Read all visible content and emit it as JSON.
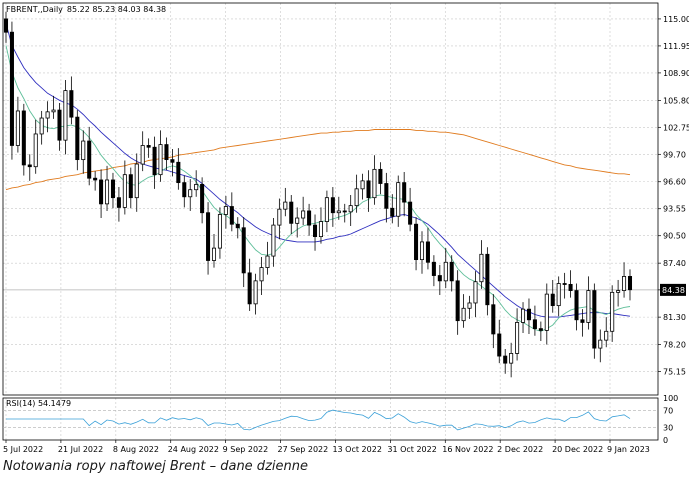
{
  "header": {
    "symbol": "FBRENT,,Daily",
    "ohlc": "85.22 85.23 84.03 84.38"
  },
  "caption": "Notowania ropy naftowej Brent – dane dzienne",
  "rsi_label": "RSI(14) 54.1479",
  "current_price": "84.38",
  "colors": {
    "candle": "#000000",
    "ma_short": "#5fbf9a",
    "ma_mid": "#2f2fbf",
    "ma_long": "#e07b1f",
    "rsi": "#3aa0d8",
    "grid": "#c8c8c8"
  },
  "chart_data": {
    "type": "candlestick",
    "price_ticks": [
      115.0,
      111.95,
      108.9,
      105.8,
      102.75,
      99.7,
      96.6,
      93.55,
      90.5,
      87.4,
      84.38,
      81.3,
      78.2,
      75.15
    ],
    "price_tick_labels": [
      "115.00",
      "111.95",
      "108.90",
      "105.80",
      "102.75",
      "99.70",
      "96.60",
      "93.55",
      "90.50",
      "87.40",
      "84.38",
      "81.30",
      "78.20",
      "75.15"
    ],
    "ylim": [
      72.5,
      116.8
    ],
    "x_labels": [
      "5 Jul 2022",
      "21 Jul 2022",
      "8 Aug 2022",
      "24 Aug 2022",
      "9 Sep 2022",
      "27 Sep 2022",
      "13 Oct 2022",
      "31 Oct 2022",
      "16 Nov 2022",
      "2 Dec 2022",
      "20 Dec 2022",
      "9 Jan 2023"
    ],
    "closes": [
      113.5,
      100.7,
      104.6,
      98.5,
      98.3,
      102.0,
      103.8,
      104.5,
      104.7,
      101.3,
      106.9,
      103.9,
      99.1,
      101.2,
      97.0,
      96.8,
      94.1,
      96.8,
      94.8,
      93.7,
      97.4,
      94.8,
      98.6,
      100.7,
      100.5,
      97.4,
      100.8,
      99.1,
      98.8,
      96.5,
      94.9,
      95.7,
      96.3,
      93.1,
      87.7,
      89.1,
      92.9,
      93.8,
      91.8,
      91.4,
      86.3,
      82.8,
      85.4,
      86.9,
      88.2,
      91.7,
      93.5,
      94.3,
      91.9,
      92.5,
      93.3,
      91.7,
      90.4,
      92.1,
      94.8,
      93.1,
      93.3,
      93.2,
      93.9,
      95.8,
      96.7,
      94.8,
      98.0,
      96.4,
      93.6,
      92.7,
      96.5,
      94.3,
      91.8,
      87.8,
      89.8,
      87.5,
      86.0,
      85.4,
      87.5,
      85.4,
      80.9,
      82.3,
      82.9,
      85.3,
      88.4,
      82.7,
      79.4,
      76.9,
      76.1,
      77.2,
      80.7,
      82.2,
      81.0,
      80.0,
      79.8,
      83.9,
      82.6,
      85.1,
      85.0,
      84.3,
      81.0,
      80.7,
      84.3,
      77.8,
      78.7,
      79.7,
      84.1,
      84.3,
      85.9,
      84.4
    ],
    "ma_short": [
      112.0,
      109.0,
      107.2,
      106.0,
      104.6,
      103.6,
      103.0,
      102.7,
      102.6,
      102.8,
      102.9,
      103.0,
      102.8,
      102.3,
      101.6,
      100.7,
      99.6,
      98.8,
      98.1,
      97.3,
      96.6,
      96.3,
      96.2,
      96.7,
      97.1,
      97.3,
      97.7,
      98.2,
      98.4,
      98.2,
      97.8,
      97.3,
      96.6,
      95.6,
      94.6,
      93.7,
      93.1,
      92.8,
      92.3,
      91.6,
      90.6,
      89.7,
      88.9,
      88.4,
      88.3,
      88.5,
      89.2,
      90.0,
      90.7,
      91.2,
      91.6,
      91.8,
      91.9,
      92.1,
      92.2,
      92.4,
      92.6,
      92.8,
      93.1,
      93.7,
      94.3,
      94.6,
      95.0,
      95.1,
      95.0,
      94.8,
      94.7,
      94.6,
      93.9,
      92.9,
      92.2,
      91.4,
      90.4,
      89.6,
      88.9,
      87.9,
      86.8,
      86.1,
      85.6,
      85.3,
      84.8,
      84.3,
      83.8,
      83.0,
      82.1,
      81.4,
      81.0,
      80.7,
      80.3,
      79.9,
      79.7,
      80.0,
      80.4,
      81.2,
      81.7,
      82.1,
      82.3,
      82.4,
      82.5,
      82.0,
      81.8,
      81.6,
      81.9,
      82.2,
      82.4,
      82.5
    ],
    "ma_mid": [
      114.5,
      112.0,
      110.7,
      109.5,
      108.6,
      107.8,
      107.2,
      106.6,
      106.2,
      105.8,
      105.5,
      105.3,
      104.8,
      104.2,
      103.5,
      102.9,
      102.2,
      101.6,
      101.0,
      100.4,
      99.8,
      99.3,
      98.9,
      98.6,
      98.4,
      98.2,
      98.0,
      97.9,
      97.7,
      97.5,
      97.3,
      97.1,
      96.9,
      96.4,
      95.8,
      95.2,
      94.6,
      94.1,
      93.6,
      93.1,
      92.5,
      92.0,
      91.5,
      91.1,
      90.8,
      90.5,
      90.2,
      90.0,
      89.9,
      89.8,
      89.8,
      89.8,
      89.8,
      89.9,
      90.1,
      90.2,
      90.4,
      90.5,
      90.7,
      91.0,
      91.3,
      91.6,
      91.9,
      92.2,
      92.4,
      92.6,
      92.8,
      92.9,
      92.7,
      92.5,
      92.2,
      91.8,
      91.2,
      90.6,
      89.9,
      89.2,
      88.4,
      87.8,
      87.2,
      86.6,
      86.0,
      85.4,
      84.8,
      84.2,
      83.6,
      83.1,
      82.6,
      82.2,
      81.9,
      81.6,
      81.4,
      81.3,
      81.3,
      81.3,
      81.4,
      81.5,
      81.6,
      81.7,
      81.8,
      81.8,
      81.8,
      81.7,
      81.7,
      81.6,
      81.5,
      81.4
    ],
    "ma_long": [
      95.7,
      95.9,
      96.0,
      96.2,
      96.3,
      96.5,
      96.6,
      96.8,
      96.9,
      97.0,
      97.2,
      97.3,
      97.4,
      97.6,
      97.7,
      97.8,
      97.9,
      98.0,
      98.2,
      98.3,
      98.4,
      98.6,
      98.7,
      98.8,
      99.0,
      99.1,
      99.2,
      99.3,
      99.4,
      99.6,
      99.7,
      99.8,
      99.9,
      100.0,
      100.1,
      100.2,
      100.4,
      100.5,
      100.6,
      100.7,
      100.8,
      100.9,
      101.0,
      101.1,
      101.2,
      101.3,
      101.4,
      101.5,
      101.6,
      101.7,
      101.8,
      101.9,
      102.0,
      102.1,
      102.1,
      102.2,
      102.2,
      102.3,
      102.3,
      102.4,
      102.4,
      102.4,
      102.5,
      102.5,
      102.5,
      102.5,
      102.5,
      102.5,
      102.5,
      102.4,
      102.4,
      102.3,
      102.3,
      102.2,
      102.2,
      102.1,
      102.0,
      101.9,
      101.7,
      101.5,
      101.3,
      101.1,
      100.9,
      100.7,
      100.5,
      100.3,
      100.1,
      99.9,
      99.7,
      99.5,
      99.3,
      99.1,
      98.9,
      98.7,
      98.5,
      98.4,
      98.2,
      98.1,
      98.0,
      97.9,
      97.8,
      97.7,
      97.6,
      97.5,
      97.5,
      97.4
    ],
    "rsi": {
      "value": 54.1479,
      "levels": [
        70,
        30
      ],
      "ylim": [
        0,
        100
      ],
      "tick_labels": [
        "100",
        "70",
        "30",
        "0"
      ]
    }
  }
}
